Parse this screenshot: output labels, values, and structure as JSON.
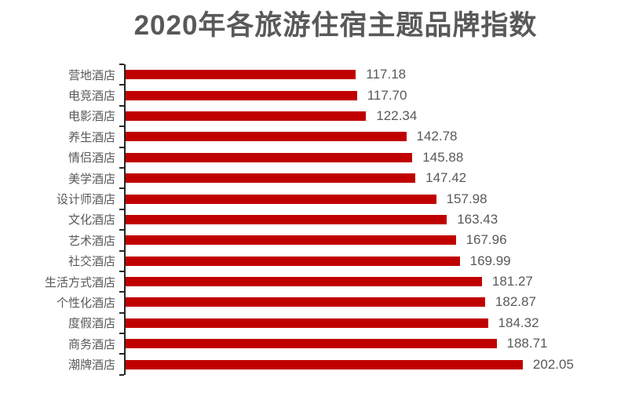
{
  "colors": {
    "background": "#FFFFFF",
    "title": "#595959"
  },
  "chart_data": {
    "type": "bar",
    "orientation": "horizontal",
    "title": "2020年各旅游住宿主题品牌指数",
    "categories": [
      "营地酒店",
      "电竞酒店",
      "电影酒店",
      "养生酒店",
      "情侣酒店",
      "美学酒店",
      "设计师酒店",
      "文化酒店",
      "艺术酒店",
      "社交酒店",
      "生活方式酒店",
      "个性化酒店",
      "度假酒店",
      "商务酒店",
      "潮牌酒店"
    ],
    "values": [
      117.18,
      117.7,
      122.34,
      142.78,
      145.88,
      147.42,
      157.98,
      163.43,
      167.96,
      169.99,
      181.27,
      182.87,
      184.32,
      188.71,
      202.05
    ],
    "value_labels": [
      "117.18",
      "117.70",
      "122.34",
      "142.78",
      "145.88",
      "147.42",
      "157.98",
      "163.43",
      "167.96",
      "169.99",
      "181.27",
      "182.87",
      "184.32",
      "188.71",
      "202.05"
    ],
    "xlabel": "",
    "ylabel": "",
    "xlim": [
      0,
      250
    ],
    "grid": false,
    "legend": false,
    "data_labels": true,
    "bar_color": "#C00000",
    "label_color": "#595959",
    "axis_color": "#262626"
  }
}
